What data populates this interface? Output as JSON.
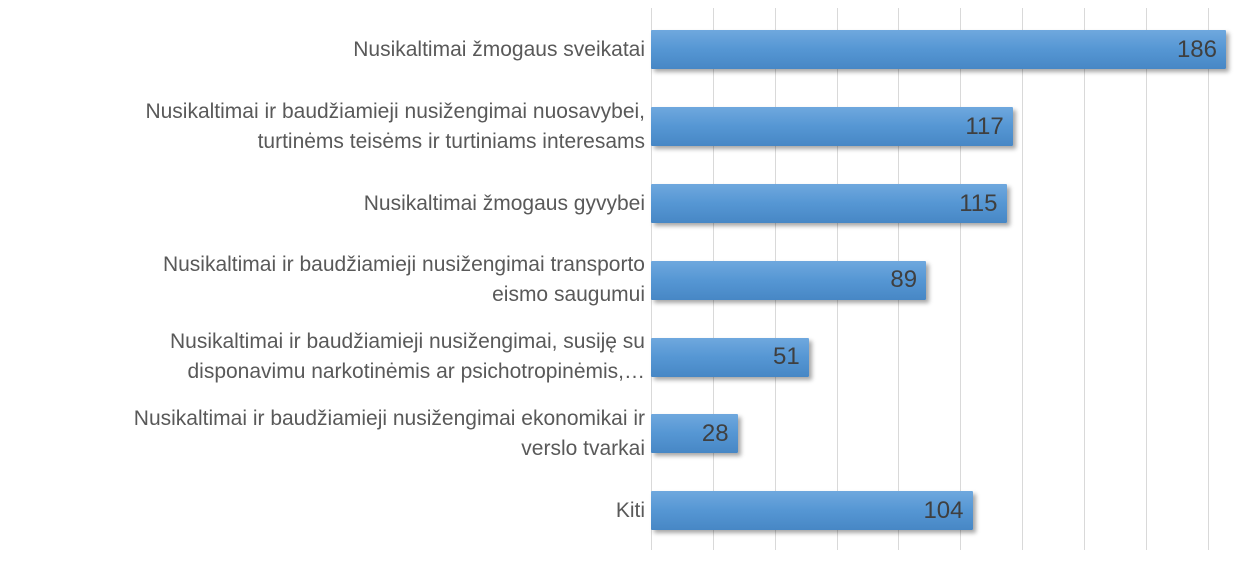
{
  "chart_data": {
    "type": "bar",
    "orientation": "horizontal",
    "title": "",
    "xlabel": "",
    "ylabel": "",
    "categories": [
      "Nusikaltimai žmogaus sveikatai",
      "Nusikaltimai ir baudžiamieji nusižengimai nuosavybei, turtinėms teisėms ir turtiniams interesams",
      "Nusikaltimai žmogaus gyvybei",
      "Nusikaltimai ir baudžiamieji nusižengimai transporto eismo saugumui",
      "Nusikaltimai ir baudžiamieji nusižengimai, susiję su disponavimu narkotinėmis ar psichotropinėmis,…",
      "Nusikaltimai ir baudžiamieji nusižengimai ekonomikai ir verslo tvarkai",
      "Kiti"
    ],
    "values": [
      186,
      117,
      115,
      89,
      51,
      28,
      104
    ],
    "xlim": [
      0,
      192
    ],
    "x_tick_interval": 20,
    "grid": "vertical",
    "legend_position": "none",
    "bar_color": "#5b9bd5",
    "gridline_color": "#d9d9d9",
    "label_color": "#595959",
    "value_label_color": "#3f3f3f"
  },
  "display": {
    "rows": [
      {
        "label_lines": [
          "Nusikaltimai žmogaus sveikatai"
        ],
        "value_label": "186"
      },
      {
        "label_lines": [
          "Nusikaltimai ir baudžiamieji nusižengimai nuosavybei,",
          "turtinėms teisėms ir turtiniams interesams"
        ],
        "value_label": "117"
      },
      {
        "label_lines": [
          "Nusikaltimai žmogaus gyvybei"
        ],
        "value_label": "115"
      },
      {
        "label_lines": [
          "Nusikaltimai ir baudžiamieji nusižengimai transporto",
          "eismo saugumui"
        ],
        "value_label": "89"
      },
      {
        "label_lines": [
          "Nusikaltimai ir baudžiamieji nusižengimai, susiję su",
          "disponavimu narkotinėmis ar psichotropinėmis,…"
        ],
        "value_label": "51"
      },
      {
        "label_lines": [
          "Nusikaltimai ir baudžiamieji nusižengimai ekonomikai ir",
          "verslo tvarkai"
        ],
        "value_label": "28"
      },
      {
        "label_lines": [
          "Kiti"
        ],
        "value_label": "104"
      }
    ]
  }
}
